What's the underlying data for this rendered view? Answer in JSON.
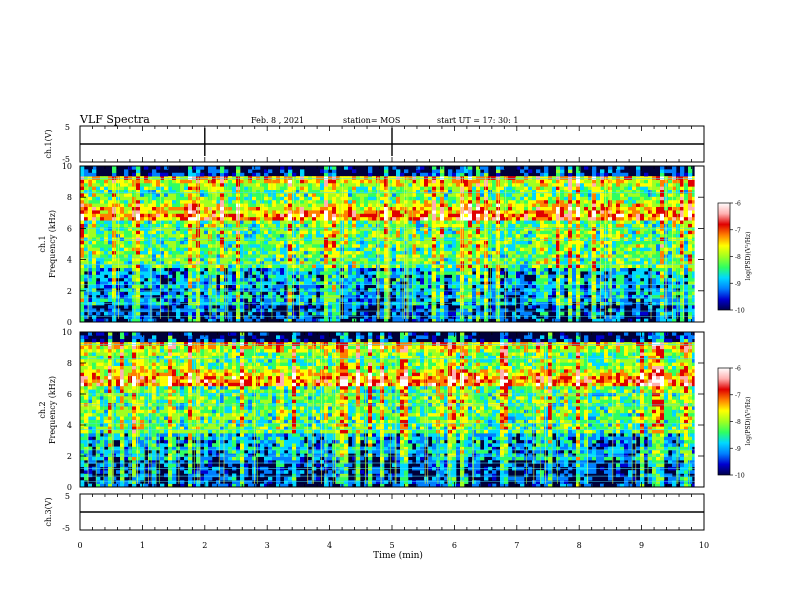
{
  "header": {
    "title": "VLF Spectra",
    "date": "Feb. 8 , 2021",
    "station": "station= MOS",
    "start_ut": "start UT =   17: 30: 1"
  },
  "chart_data": [
    {
      "type": "line",
      "ylabel": "ch.1(V)",
      "ylim": [
        -5,
        5
      ],
      "yticks": [
        "5",
        "-5"
      ],
      "series": [
        {
          "values": [
            0
          ]
        }
      ]
    },
    {
      "type": "heatmap",
      "ylabel_top": "ch.1",
      "ylabel": "Frequency (kHz)",
      "ylim": [
        0,
        10
      ],
      "yticks": [
        "0",
        "2",
        "4",
        "6",
        "8",
        "10"
      ],
      "xlim": [
        0,
        10
      ],
      "colorbar": {
        "label": "log(PSD)(V²/Hz)",
        "range": [
          -10,
          -6
        ],
        "ticks": [
          "-6",
          "-7",
          "-8",
          "-9",
          "-10"
        ],
        "colors": [
          "#00004a",
          "#0000d0",
          "#0080ff",
          "#00d8ff",
          "#30ff60",
          "#a0ff20",
          "#ffff00",
          "#ff8000",
          "#e00000",
          "#ffb0b0",
          "#ffffff"
        ]
      }
    },
    {
      "type": "heatmap",
      "ylabel_top": "ch.2",
      "ylabel": "Frequency (kHz)",
      "ylim": [
        0,
        10
      ],
      "yticks": [
        "0",
        "2",
        "4",
        "6",
        "8",
        "10"
      ],
      "xlim": [
        0,
        10
      ],
      "colorbar": {
        "label": "log(PSD)(V²/Hz)",
        "range": [
          -10,
          -6
        ],
        "ticks": [
          "-6",
          "-7",
          "-8",
          "-9",
          "-10"
        ],
        "colors": [
          "#00004a",
          "#0000d0",
          "#0080ff",
          "#00d8ff",
          "#30ff60",
          "#a0ff20",
          "#ffff00",
          "#ff8000",
          "#e00000",
          "#ffb0b0",
          "#ffffff"
        ]
      }
    },
    {
      "type": "line",
      "ylabel": "ch.3(V)",
      "ylim": [
        -5,
        5
      ],
      "yticks": [
        "5",
        "-5"
      ],
      "xlabel": "Time (min)",
      "xlim": [
        0,
        10
      ],
      "xticks": [
        "0",
        "1",
        "2",
        "3",
        "4",
        "5",
        "6",
        "7",
        "8",
        "9",
        "10"
      ],
      "series": [
        {
          "values": [
            0
          ]
        }
      ]
    }
  ]
}
